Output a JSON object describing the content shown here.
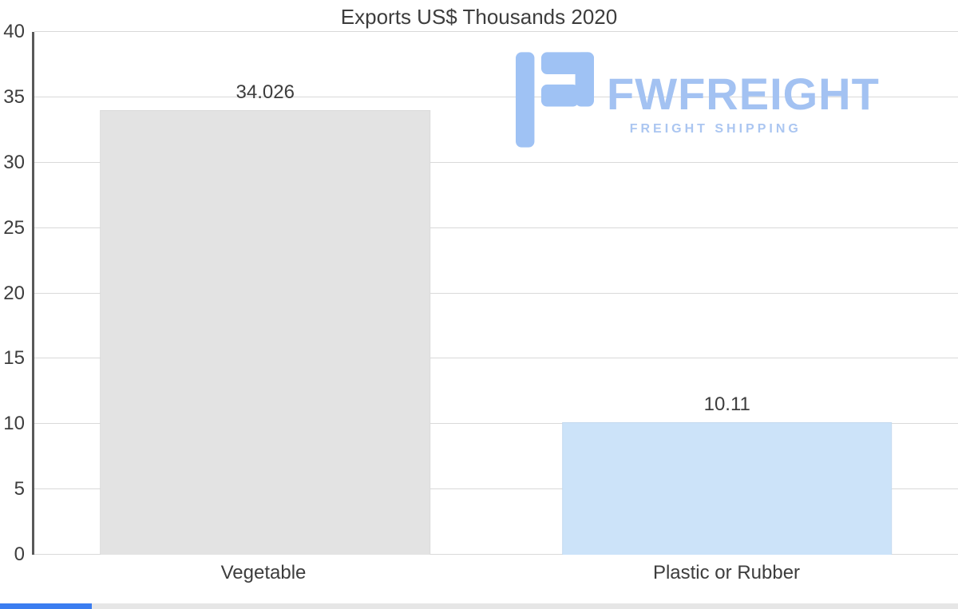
{
  "title": "Exports US$ Thousands 2020",
  "chart_data": {
    "type": "bar",
    "title": "Exports US$ Thousands 2020",
    "categories": [
      "Vegetable",
      "Plastic or Rubber"
    ],
    "values": [
      34.026,
      10.11
    ],
    "value_labels": [
      "34.026",
      "10.11"
    ],
    "bar_colors": [
      "#e3e3e3",
      "#cce3f9"
    ],
    "xlabel": "",
    "ylabel": "",
    "ylim": [
      0,
      40
    ],
    "yticks": [
      0,
      5,
      10,
      15,
      20,
      25,
      30,
      35,
      40
    ],
    "grid": true,
    "legend": false
  },
  "watermark": {
    "brand": "FWFREIGHT",
    "tagline": "FREIGHT SHIPPING",
    "brand_color": "#a3c2f2",
    "icon": "fwfreight-logo-icon"
  },
  "progress_bar": {
    "percent": 9.6
  },
  "colors": {
    "axis": "#595959",
    "grid": "#d9d9d9",
    "text": "#3d3d3d",
    "progress_fill": "#3b7df0",
    "progress_track": "#e6e6e6",
    "logo_blue": "#9fc2f4"
  }
}
